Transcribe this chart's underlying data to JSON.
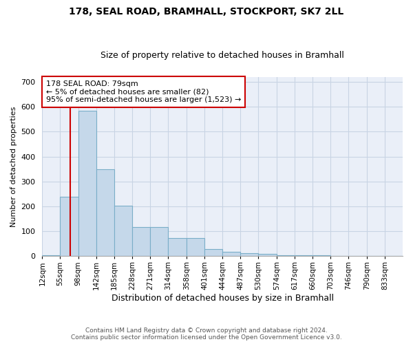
{
  "title": "178, SEAL ROAD, BRAMHALL, STOCKPORT, SK7 2LL",
  "subtitle": "Size of property relative to detached houses in Bramhall",
  "xlabel": "Distribution of detached houses by size in Bramhall",
  "ylabel": "Number of detached properties",
  "footer_line1": "Contains HM Land Registry data © Crown copyright and database right 2024.",
  "footer_line2": "Contains public sector information licensed under the Open Government Licence v3.0.",
  "annotation_line1": "178 SEAL ROAD: 79sqm",
  "annotation_line2": "← 5% of detached houses are smaller (82)",
  "annotation_line3": "95% of semi-detached houses are larger (1,523) →",
  "property_line_x": 79,
  "bar_edges": [
    12,
    55,
    98,
    142,
    185,
    228,
    271,
    314,
    358,
    401,
    444,
    487,
    530,
    574,
    617,
    660,
    703,
    746,
    790,
    833,
    876
  ],
  "bar_heights": [
    5,
    238,
    585,
    348,
    204,
    118,
    118,
    72,
    72,
    28,
    18,
    12,
    8,
    5,
    5,
    5,
    0,
    0,
    0,
    0
  ],
  "bar_color": "#c5d8ea",
  "bar_edge_color": "#7aaec8",
  "property_line_color": "#cc0000",
  "annotation_box_color": "#cc0000",
  "ylim": [
    0,
    720
  ],
  "yticks": [
    0,
    100,
    200,
    300,
    400,
    500,
    600,
    700
  ],
  "grid_color": "#c8d4e4",
  "bg_color": "#eaeff8",
  "title_fontsize": 10,
  "subtitle_fontsize": 9,
  "tick_label_fontsize": 7.5,
  "ylabel_fontsize": 8,
  "xlabel_fontsize": 9
}
